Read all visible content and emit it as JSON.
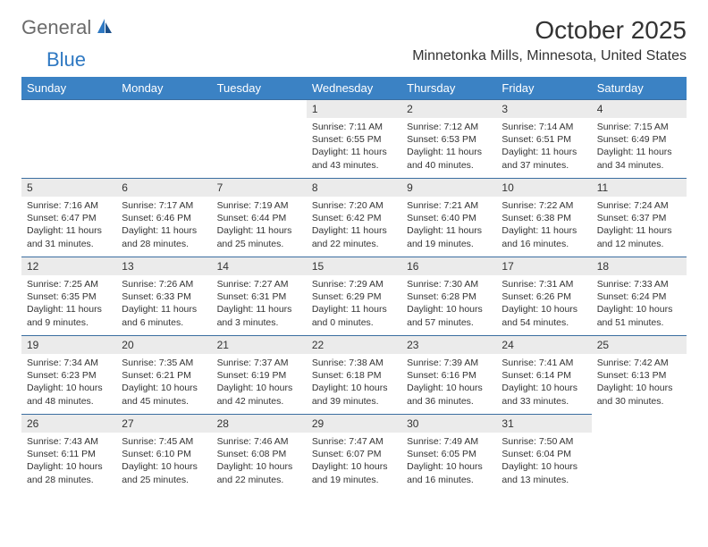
{
  "logo": {
    "text_general": "General",
    "text_blue": "Blue"
  },
  "title": "October 2025",
  "location": "Minnetonka Mills, Minnesota, United States",
  "header_bg": "#3b82c4",
  "header_text_color": "#ffffff",
  "day_number_bg": "#ebebeb",
  "border_color": "#3b6ea0",
  "text_color": "#333333",
  "logo_gray": "#6b6b6b",
  "logo_blue": "#2e78c2",
  "days_of_week": [
    "Sunday",
    "Monday",
    "Tuesday",
    "Wednesday",
    "Thursday",
    "Friday",
    "Saturday"
  ],
  "weeks": [
    [
      null,
      null,
      null,
      {
        "n": "1",
        "sunrise": "7:11 AM",
        "sunset": "6:55 PM",
        "daylight": "11 hours and 43 minutes."
      },
      {
        "n": "2",
        "sunrise": "7:12 AM",
        "sunset": "6:53 PM",
        "daylight": "11 hours and 40 minutes."
      },
      {
        "n": "3",
        "sunrise": "7:14 AM",
        "sunset": "6:51 PM",
        "daylight": "11 hours and 37 minutes."
      },
      {
        "n": "4",
        "sunrise": "7:15 AM",
        "sunset": "6:49 PM",
        "daylight": "11 hours and 34 minutes."
      }
    ],
    [
      {
        "n": "5",
        "sunrise": "7:16 AM",
        "sunset": "6:47 PM",
        "daylight": "11 hours and 31 minutes."
      },
      {
        "n": "6",
        "sunrise": "7:17 AM",
        "sunset": "6:46 PM",
        "daylight": "11 hours and 28 minutes."
      },
      {
        "n": "7",
        "sunrise": "7:19 AM",
        "sunset": "6:44 PM",
        "daylight": "11 hours and 25 minutes."
      },
      {
        "n": "8",
        "sunrise": "7:20 AM",
        "sunset": "6:42 PM",
        "daylight": "11 hours and 22 minutes."
      },
      {
        "n": "9",
        "sunrise": "7:21 AM",
        "sunset": "6:40 PM",
        "daylight": "11 hours and 19 minutes."
      },
      {
        "n": "10",
        "sunrise": "7:22 AM",
        "sunset": "6:38 PM",
        "daylight": "11 hours and 16 minutes."
      },
      {
        "n": "11",
        "sunrise": "7:24 AM",
        "sunset": "6:37 PM",
        "daylight": "11 hours and 12 minutes."
      }
    ],
    [
      {
        "n": "12",
        "sunrise": "7:25 AM",
        "sunset": "6:35 PM",
        "daylight": "11 hours and 9 minutes."
      },
      {
        "n": "13",
        "sunrise": "7:26 AM",
        "sunset": "6:33 PM",
        "daylight": "11 hours and 6 minutes."
      },
      {
        "n": "14",
        "sunrise": "7:27 AM",
        "sunset": "6:31 PM",
        "daylight": "11 hours and 3 minutes."
      },
      {
        "n": "15",
        "sunrise": "7:29 AM",
        "sunset": "6:29 PM",
        "daylight": "11 hours and 0 minutes."
      },
      {
        "n": "16",
        "sunrise": "7:30 AM",
        "sunset": "6:28 PM",
        "daylight": "10 hours and 57 minutes."
      },
      {
        "n": "17",
        "sunrise": "7:31 AM",
        "sunset": "6:26 PM",
        "daylight": "10 hours and 54 minutes."
      },
      {
        "n": "18",
        "sunrise": "7:33 AM",
        "sunset": "6:24 PM",
        "daylight": "10 hours and 51 minutes."
      }
    ],
    [
      {
        "n": "19",
        "sunrise": "7:34 AM",
        "sunset": "6:23 PM",
        "daylight": "10 hours and 48 minutes."
      },
      {
        "n": "20",
        "sunrise": "7:35 AM",
        "sunset": "6:21 PM",
        "daylight": "10 hours and 45 minutes."
      },
      {
        "n": "21",
        "sunrise": "7:37 AM",
        "sunset": "6:19 PM",
        "daylight": "10 hours and 42 minutes."
      },
      {
        "n": "22",
        "sunrise": "7:38 AM",
        "sunset": "6:18 PM",
        "daylight": "10 hours and 39 minutes."
      },
      {
        "n": "23",
        "sunrise": "7:39 AM",
        "sunset": "6:16 PM",
        "daylight": "10 hours and 36 minutes."
      },
      {
        "n": "24",
        "sunrise": "7:41 AM",
        "sunset": "6:14 PM",
        "daylight": "10 hours and 33 minutes."
      },
      {
        "n": "25",
        "sunrise": "7:42 AM",
        "sunset": "6:13 PM",
        "daylight": "10 hours and 30 minutes."
      }
    ],
    [
      {
        "n": "26",
        "sunrise": "7:43 AM",
        "sunset": "6:11 PM",
        "daylight": "10 hours and 28 minutes."
      },
      {
        "n": "27",
        "sunrise": "7:45 AM",
        "sunset": "6:10 PM",
        "daylight": "10 hours and 25 minutes."
      },
      {
        "n": "28",
        "sunrise": "7:46 AM",
        "sunset": "6:08 PM",
        "daylight": "10 hours and 22 minutes."
      },
      {
        "n": "29",
        "sunrise": "7:47 AM",
        "sunset": "6:07 PM",
        "daylight": "10 hours and 19 minutes."
      },
      {
        "n": "30",
        "sunrise": "7:49 AM",
        "sunset": "6:05 PM",
        "daylight": "10 hours and 16 minutes."
      },
      {
        "n": "31",
        "sunrise": "7:50 AM",
        "sunset": "6:04 PM",
        "daylight": "10 hours and 13 minutes."
      },
      null
    ]
  ],
  "labels": {
    "sunrise_prefix": "Sunrise: ",
    "sunset_prefix": "Sunset: ",
    "daylight_prefix": "Daylight: "
  }
}
